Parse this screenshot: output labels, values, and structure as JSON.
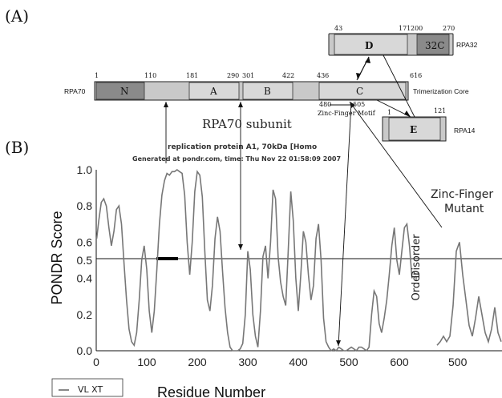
{
  "panels": {
    "a": "(A)",
    "b": "(B)"
  },
  "rpa70": {
    "name": "RPA70",
    "caption": "RPA70 subunit",
    "side_label": "Trimerization Core",
    "domains": [
      {
        "label": "N",
        "start": "1",
        "end": "110"
      },
      {
        "label": "A",
        "start": "181",
        "end": "290"
      },
      {
        "label": "B",
        "start": "301",
        "end": "422"
      },
      {
        "label": "C",
        "start": "436",
        "end": "616"
      }
    ],
    "zinc_motif": {
      "label": "Zinc-Finger Motif",
      "start": "480",
      "end": "505"
    }
  },
  "rpa32": {
    "name": "RPA32",
    "domains": [
      {
        "label": "D",
        "start": "43",
        "end": "171"
      },
      {
        "label": "32C",
        "start": "200",
        "end": "270"
      }
    ]
  },
  "rpa14": {
    "name": "RPA14",
    "domains": [
      {
        "label": "E",
        "start": "1",
        "end": "121"
      }
    ]
  },
  "plot_header": {
    "line1": "replication protein A1, 70kDa [Homo",
    "line2": "Generated at pondr.com, time: Thu Nov 22 01:58:09 2007"
  },
  "axes": {
    "ylabel": "PONDR Score",
    "xlabel": "Residue Number",
    "yticks": [
      "1.0",
      "0.8",
      "0.6",
      "0.5",
      "0.4",
      "0.2",
      "0.0"
    ],
    "xticks": [
      "0",
      "100",
      "200",
      "300",
      "400",
      "500",
      "600"
    ],
    "inset_xtick": "500",
    "disorder": "Disorder",
    "order": "Order"
  },
  "legend": {
    "entry": "VL XT"
  },
  "inset_title": {
    "line1": "Zinc-Finger",
    "line2": "Mutant"
  },
  "chart_data": [
    {
      "type": "line",
      "title": "replication protein A1, 70kDa [Homo",
      "xlabel": "Residue Number",
      "ylabel": "PONDR Score",
      "xlim": [
        0,
        625
      ],
      "ylim": [
        0,
        1
      ],
      "threshold": 0.5,
      "series": [
        {
          "name": "VL XT",
          "x": [
            1,
            5,
            10,
            15,
            20,
            25,
            30,
            35,
            40,
            45,
            50,
            55,
            60,
            65,
            70,
            75,
            80,
            85,
            90,
            95,
            100,
            105,
            110,
            115,
            120,
            125,
            130,
            135,
            140,
            145,
            150,
            155,
            160,
            165,
            170,
            175,
            180,
            185,
            190,
            195,
            200,
            205,
            210,
            215,
            220,
            225,
            230,
            235,
            240,
            245,
            250,
            255,
            260,
            265,
            270,
            275,
            280,
            285,
            290,
            295,
            300,
            305,
            310,
            315,
            320,
            325,
            330,
            335,
            340,
            345,
            350,
            355,
            360,
            365,
            370,
            375,
            380,
            385,
            390,
            395,
            400,
            405,
            410,
            415,
            420,
            425,
            430,
            435,
            440,
            445,
            450,
            455,
            460,
            465,
            470,
            475,
            480,
            485,
            490,
            495,
            500,
            505,
            510,
            515,
            520,
            525,
            530,
            535,
            540,
            545,
            550,
            555,
            560,
            565,
            570,
            575,
            580,
            585,
            590,
            595,
            600,
            605,
            610,
            615,
            620,
            625
          ],
          "y": [
            0.62,
            0.72,
            0.82,
            0.84,
            0.8,
            0.68,
            0.58,
            0.66,
            0.78,
            0.8,
            0.7,
            0.48,
            0.28,
            0.12,
            0.05,
            0.03,
            0.1,
            0.28,
            0.5,
            0.58,
            0.45,
            0.22,
            0.1,
            0.22,
            0.45,
            0.7,
            0.86,
            0.94,
            0.98,
            0.97,
            0.99,
            0.99,
            1.0,
            0.99,
            0.98,
            0.86,
            0.6,
            0.42,
            0.6,
            0.88,
            0.99,
            0.97,
            0.85,
            0.55,
            0.28,
            0.22,
            0.36,
            0.62,
            0.74,
            0.66,
            0.44,
            0.24,
            0.1,
            0.02,
            0.0,
            0.0,
            0.0,
            0.01,
            0.04,
            0.2,
            0.55,
            0.45,
            0.2,
            0.08,
            0.02,
            0.22,
            0.52,
            0.58,
            0.4,
            0.6,
            0.89,
            0.84,
            0.52,
            0.38,
            0.3,
            0.25,
            0.55,
            0.88,
            0.72,
            0.4,
            0.22,
            0.42,
            0.66,
            0.6,
            0.42,
            0.28,
            0.36,
            0.62,
            0.7,
            0.5,
            0.18,
            0.05,
            0.02,
            0.0,
            0.01,
            0.0,
            0.02,
            0.01,
            0.0,
            0.0,
            0.01,
            0.02,
            0.01,
            0.0,
            0.02,
            0.02,
            0.01,
            0.0,
            0.02,
            0.2,
            0.33,
            0.3,
            0.15,
            0.1,
            0.18,
            0.28,
            0.42,
            0.58,
            0.68,
            0.5,
            0.42,
            0.55,
            0.68,
            0.7,
            0.58,
            0.4
          ]
        }
      ]
    },
    {
      "type": "line",
      "title": "Zinc-Finger Mutant",
      "ylim": [
        0,
        1
      ],
      "threshold": 0.5,
      "series": [
        {
          "name": "Zinc-Finger Mutant",
          "x": [
            455,
            460,
            465,
            470,
            475,
            480,
            485,
            490,
            495,
            500,
            505,
            510,
            515,
            520,
            525,
            530,
            535,
            540,
            545,
            550,
            555
          ],
          "y": [
            0.03,
            0.05,
            0.08,
            0.05,
            0.08,
            0.25,
            0.55,
            0.6,
            0.42,
            0.28,
            0.14,
            0.08,
            0.18,
            0.3,
            0.2,
            0.1,
            0.05,
            0.12,
            0.24,
            0.1,
            0.05
          ]
        }
      ]
    }
  ]
}
